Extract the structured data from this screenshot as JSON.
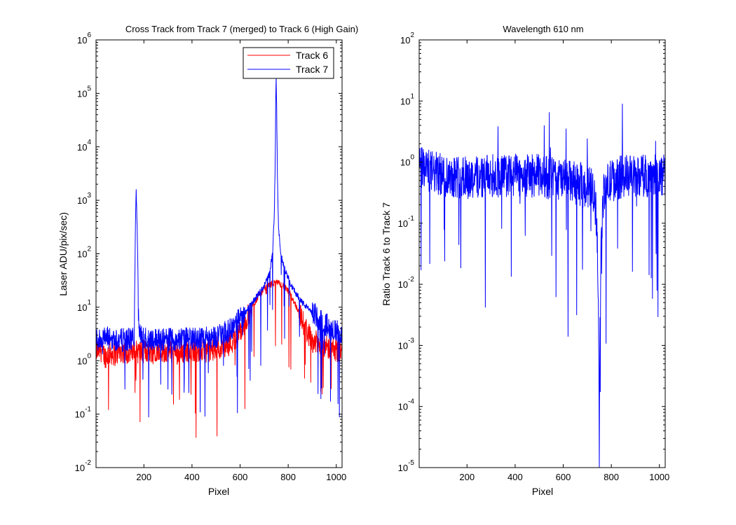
{
  "chart_data": [
    {
      "type": "line",
      "title": "Cross Track from Track 7 (merged) to Track 6 (High Gain)",
      "xlabel": "Pixel",
      "ylabel": "Laser ADU/pix/sec)",
      "xlim": [
        1,
        1024
      ],
      "ylim": [
        0.01,
        1000000
      ],
      "yscale": "log",
      "grid": false,
      "legend_position": "top-right",
      "xticks": [
        200,
        400,
        600,
        800,
        1000
      ],
      "yticks": [
        {
          "base": "10",
          "exp": "-2"
        },
        {
          "base": "10",
          "exp": "-1"
        },
        {
          "base": "10",
          "exp": "0"
        },
        {
          "base": "10",
          "exp": "1"
        },
        {
          "base": "10",
          "exp": "2"
        },
        {
          "base": "10",
          "exp": "3"
        },
        {
          "base": "10",
          "exp": "4"
        },
        {
          "base": "10",
          "exp": "5"
        },
        {
          "base": "10",
          "exp": "6"
        }
      ],
      "series": [
        {
          "name": "Track 6",
          "color": "#ff0000",
          "x": [
            1,
            20,
            40,
            60,
            80,
            100,
            150,
            200,
            250,
            300,
            350,
            400,
            450,
            500,
            550,
            580,
            600,
            620,
            640,
            660,
            680,
            700,
            720,
            740,
            750,
            760,
            780,
            800,
            820,
            840,
            860,
            880,
            900,
            950,
            1000,
            1024
          ],
          "y": [
            1.5,
            1.6,
            1.2,
            1.4,
            1.3,
            1.5,
            1.4,
            1.5,
            1.6,
            1.5,
            1.4,
            1.6,
            1.5,
            1.7,
            2.0,
            2.5,
            3.3,
            5.0,
            8.0,
            12,
            17,
            22,
            26,
            28,
            29,
            28,
            25,
            20,
            14,
            9,
            5.5,
            3.4,
            2.4,
            1.8,
            1.6,
            1.5
          ]
        },
        {
          "name": "Track 7",
          "color": "#0000ff",
          "x": [
            1,
            50,
            100,
            150,
            160,
            165,
            168,
            172,
            180,
            200,
            300,
            400,
            500,
            550,
            600,
            650,
            700,
            720,
            735,
            742,
            746,
            748,
            750,
            752,
            755,
            760,
            770,
            790,
            820,
            860,
            900,
            950,
            1000,
            1024
          ],
          "y": [
            2.5,
            2.6,
            2.4,
            2.5,
            3.0,
            400,
            1700,
            300,
            3.0,
            2.6,
            2.5,
            2.6,
            2.8,
            3.5,
            6.0,
            12,
            25,
            40,
            100,
            500,
            5000,
            60000,
            200000,
            60000,
            3000,
            300,
            90,
            45,
            22,
            12,
            8,
            5,
            3.5,
            3.0
          ]
        }
      ]
    },
    {
      "type": "line",
      "title": "Wavelength 610 nm",
      "xlabel": "Pixel",
      "ylabel": "Ratio Track 6 to Track 7",
      "xlim": [
        1,
        1024
      ],
      "ylim": [
        1e-05,
        100
      ],
      "yscale": "log",
      "grid": false,
      "xticks": [
        200,
        400,
        600,
        800,
        1000
      ],
      "yticks": [
        {
          "base": "10",
          "exp": "-5"
        },
        {
          "base": "10",
          "exp": "-4"
        },
        {
          "base": "10",
          "exp": "-3"
        },
        {
          "base": "10",
          "exp": "-2"
        },
        {
          "base": "10",
          "exp": "-1"
        },
        {
          "base": "10",
          "exp": "0"
        },
        {
          "base": "10",
          "exp": "1"
        },
        {
          "base": "10",
          "exp": "2"
        }
      ],
      "series": [
        {
          "color": "#0000ff",
          "x": [
            1,
            50,
            100,
            150,
            200,
            300,
            400,
            500,
            550,
            600,
            650,
            700,
            720,
            735,
            742,
            748,
            750,
            752,
            758,
            765,
            780,
            800,
            830,
            860,
            900,
            950,
            1000,
            1024
          ],
          "y": [
            0.8,
            0.7,
            0.6,
            0.6,
            0.55,
            0.6,
            0.6,
            0.6,
            0.55,
            0.5,
            0.45,
            0.4,
            0.35,
            0.2,
            0.05,
            0.001,
            8e-05,
            0.001,
            0.05,
            0.25,
            0.4,
            0.5,
            0.55,
            0.6,
            0.6,
            0.6,
            0.6,
            0.6
          ]
        }
      ]
    }
  ],
  "legend": {
    "entries": [
      {
        "label": "Track 6",
        "color": "#ff0000"
      },
      {
        "label": "Track 7",
        "color": "#0000ff"
      }
    ]
  }
}
